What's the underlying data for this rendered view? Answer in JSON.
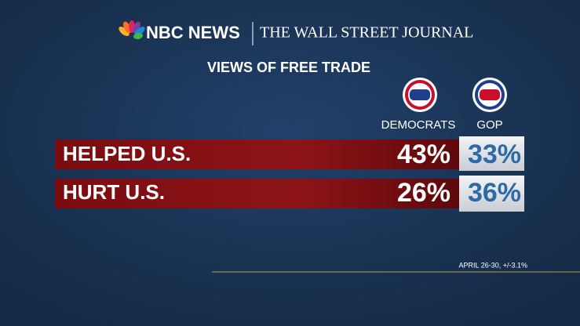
{
  "header": {
    "brand_left": "NBC NEWS",
    "brand_right": "THE WALL STREET JOURNAL"
  },
  "title": "VIEWS OF FREE TRADE",
  "table": {
    "columns": [
      "DEMOCRATS",
      "GOP"
    ],
    "rows": [
      {
        "label": "HELPED U.S.",
        "cells": [
          "43%",
          "33%"
        ]
      },
      {
        "label": "HURT U.S.",
        "cells": [
          "26%",
          "36%"
        ]
      }
    ]
  },
  "footnote": "APRIL 26-30, +/-3.1%"
}
